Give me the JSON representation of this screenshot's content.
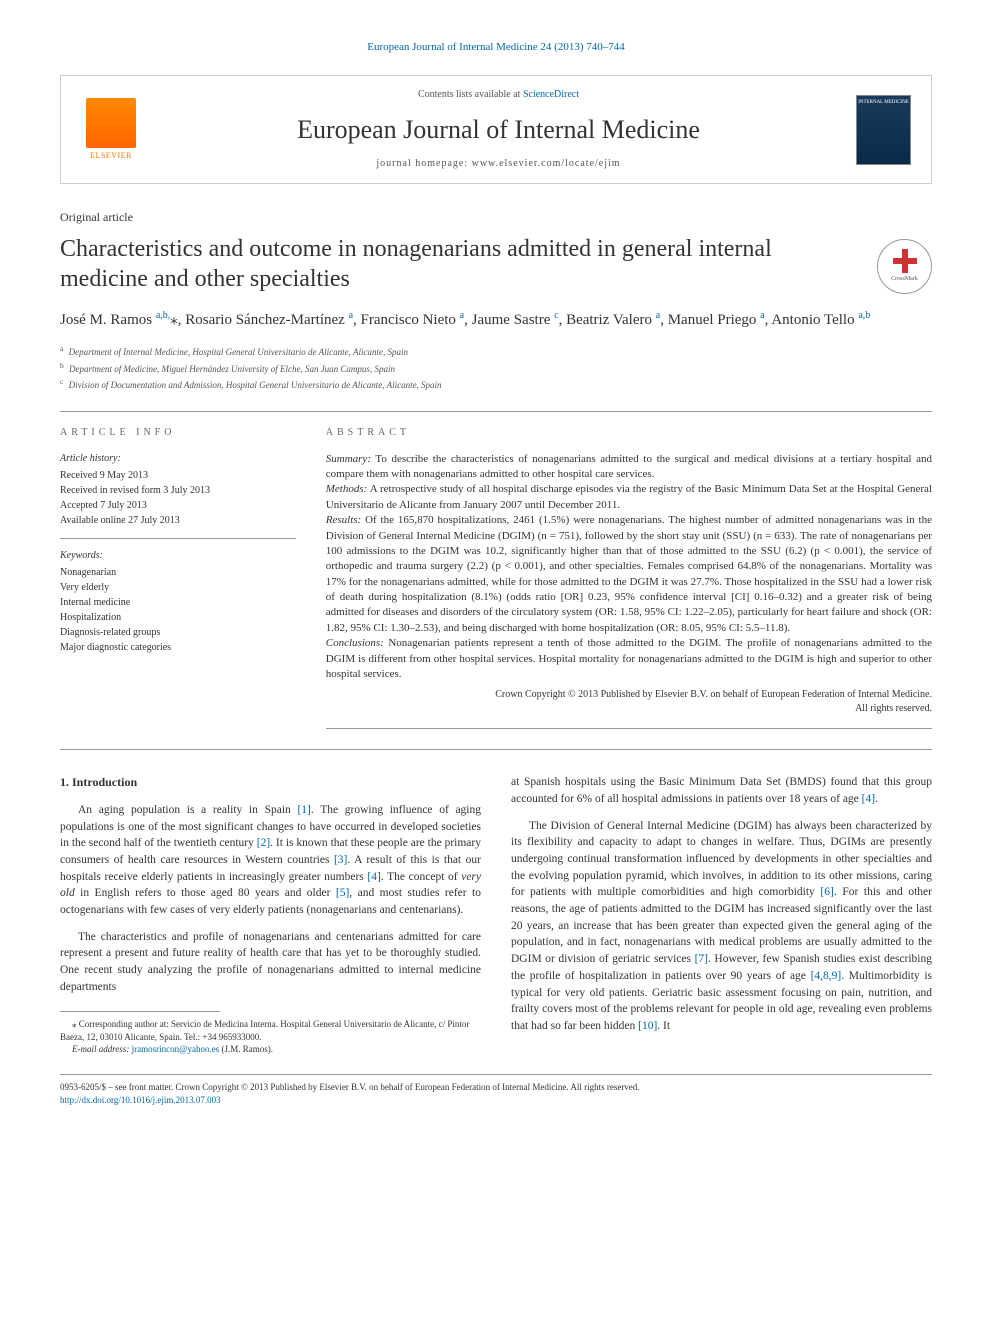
{
  "colors": {
    "link": "#0066aa",
    "text": "#333333",
    "muted": "#555555",
    "rule": "#999999",
    "elsevier": "#ff7700",
    "crossmark_red": "#cc3333",
    "cover_bg": "#1a3a5a"
  },
  "typography": {
    "body_size_pt": 11,
    "title_size_pt": 24,
    "journal_size_pt": 26,
    "small_pt": 9
  },
  "header": {
    "top_link": "European Journal of Internal Medicine 24 (2013) 740–744",
    "contents_prefix": "Contents lists available at ",
    "contents_link": "ScienceDirect",
    "journal_name": "European Journal of Internal Medicine",
    "homepage_label": "journal homepage: www.elsevier.com/locate/ejim",
    "elsevier_label": "ELSEVIER",
    "cover_label": "INTERNAL MEDICINE",
    "crossmark_label": "CrossMark"
  },
  "article": {
    "type": "Original article",
    "title": "Characteristics and outcome in nonagenarians admitted in general internal medicine and other specialties",
    "authors_html": "José M. Ramos <sup>a,b,</sup><span class='star'>⁎</span>, Rosario Sánchez-Martínez <sup>a</sup>, Francisco Nieto <sup>a</sup>, Jaume Sastre <sup>c</sup>, Beatriz Valero <sup>a</sup>, Manuel Priego <sup>a</sup>, Antonio Tello <sup>a,b</sup>",
    "affiliations": [
      {
        "key": "a",
        "text": "Department of Internal Medicine, Hospital General Universitario de Alicante, Alicante, Spain"
      },
      {
        "key": "b",
        "text": "Department of Medicine, Miguel Hernández University of Elche, San Juan Campus, Spain"
      },
      {
        "key": "c",
        "text": "Division of Documentation and Admission, Hospital General Universitario de Alicante, Alicante, Spain"
      }
    ]
  },
  "article_info": {
    "heading": "ARTICLE INFO",
    "history_label": "Article history:",
    "history": [
      "Received 9 May 2013",
      "Received in revised form 3 July 2013",
      "Accepted 7 July 2013",
      "Available online 27 July 2013"
    ],
    "keywords_label": "Keywords:",
    "keywords": [
      "Nonagenarian",
      "Very elderly",
      "Internal medicine",
      "Hospitalization",
      "Diagnosis-related groups",
      "Major diagnostic categories"
    ]
  },
  "abstract": {
    "heading": "ABSTRACT",
    "summary_label": "Summary:",
    "summary": " To describe the characteristics of nonagenarians admitted to the surgical and medical divisions at a tertiary hospital and compare them with nonagenarians admitted to other hospital care services.",
    "methods_label": "Methods:",
    "methods": " A retrospective study of all hospital discharge episodes via the registry of the Basic Minimum Data Set at the Hospital General Universitario de Alicante from January 2007 until December 2011.",
    "results_label": "Results:",
    "results": " Of the 165,870 hospitalizations, 2461 (1.5%) were nonagenarians. The highest number of admitted nonagenarians was in the Division of General Internal Medicine (DGIM) (n = 751), followed by the short stay unit (SSU) (n = 633). The rate of nonagenarians per 100 admissions to the DGIM was 10.2, significantly higher than that of those admitted to the SSU (6.2) (p < 0.001), the service of orthopedic and trauma surgery (2.2) (p < 0.001), and other specialties. Females comprised 64.8% of the nonagenarians. Mortality was 17% for the nonagenarians admitted, while for those admitted to the DGIM it was 27.7%. Those hospitalized in the SSU had a lower risk of death during hospitalization (8.1%) (odds ratio [OR] 0.23, 95% confidence interval [CI] 0.16–0.32) and a greater risk of being admitted for diseases and disorders of the circulatory system (OR: 1.58, 95% CI: 1.22–2.05), particularly for heart failure and shock (OR: 1.82, 95% CI: 1.30–2.53), and being discharged with home hospitalization (OR: 8.05, 95% CI: 5.5–11.8).",
    "conclusions_label": "Conclusions:",
    "conclusions": " Nonagenarian patients represent a tenth of those admitted to the DGIM. The profile of nonagenarians admitted to the DGIM is different from other hospital services. Hospital mortality for nonagenarians admitted to the DGIM is high and superior to other hospital services.",
    "copyright1": "Crown Copyright © 2013 Published by Elsevier B.V. on behalf of European Federation of Internal Medicine.",
    "copyright2": "All rights reserved."
  },
  "body": {
    "section1_heading": "1. Introduction",
    "para1a": "An aging population is a reality in Spain ",
    "ref1": "[1]",
    "para1b": ". The growing influence of aging populations is one of the most significant changes to have occurred in developed societies in the second half of the twentieth century ",
    "ref2": "[2]",
    "para1c": ". It is known that these people are the primary consumers of health care resources in Western countries ",
    "ref3": "[3]",
    "para1d": ". A result of this is that our hospitals receive elderly patients in increasingly greater numbers ",
    "ref4": "[4]",
    "para1e": ". The concept of ",
    "italic1": "very old",
    "para1f": " in English refers to those aged 80 years and older ",
    "ref5": "[5]",
    "para1g": ", and most studies refer to octogenarians with few cases of very elderly patients (nonagenarians and centenarians).",
    "para2": "The characteristics and profile of nonagenarians and centenarians admitted for care represent a present and future reality of health care that has yet to be thoroughly studied. One recent study analyzing the profile of nonagenarians admitted to internal medicine departments",
    "para3a": "at Spanish hospitals using the Basic Minimum Data Set (BMDS) found that this group accounted for 6% of all hospital admissions in patients over 18 years of age ",
    "ref4b": "[4]",
    "para3b": ".",
    "para4a": "The Division of General Internal Medicine (DGIM) has always been characterized by its flexibility and capacity to adapt to changes in welfare. Thus, DGIMs are presently undergoing continual transformation influenced by developments in other specialties and the evolving population pyramid, which involves, in addition to its other missions, caring for patients with multiple comorbidities and high comorbidity ",
    "ref6": "[6]",
    "para4b": ". For this and other reasons, the age of patients admitted to the DGIM has increased significantly over the last 20 years, an increase that has been greater than expected given the general aging of the population, and in fact, nonagenarians with medical problems are usually admitted to the DGIM or division of geriatric services ",
    "ref7": "[7]",
    "para4c": ". However, few Spanish studies exist describing the profile of hospitalization in patients over 90 years of age ",
    "ref489": "[4,8,9]",
    "para4d": ". Multimorbidity is typical for very old patients. Geriatric basic assessment focusing on pain, nutrition, and frailty covers most of the problems relevant for people in old age, revealing even problems that had so far been hidden ",
    "ref10": "[10]",
    "para4e": ". It"
  },
  "footnotes": {
    "corr": "⁎ Corresponding author at: Servicio de Medicina Interna. Hospital General Universitario de Alicante, c/ Pintor Baeza, 12, 03010 Alicante, Spain. Tel.: +34 965933000.",
    "email_label": "E-mail address: ",
    "email": "jramosrincon@yahoo.es",
    "email_suffix": " (J.M. Ramos)."
  },
  "bottom": {
    "line1": "0953-6205/$ – see front matter. Crown Copyright © 2013 Published by Elsevier B.V. on behalf of European Federation of Internal Medicine. All rights reserved.",
    "doi": "http://dx.doi.org/10.1016/j.ejim.2013.07.003"
  }
}
